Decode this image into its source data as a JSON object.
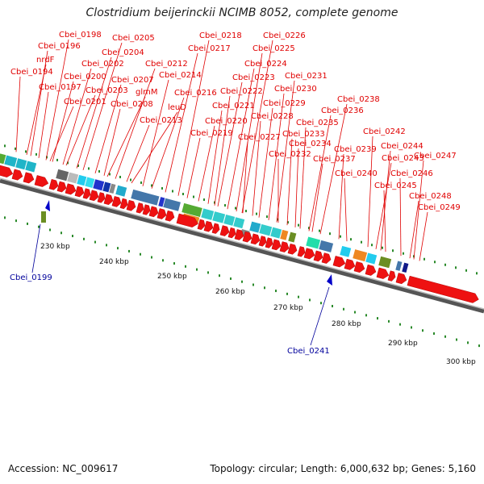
{
  "title": "Clostridium beijerinckii NCIMB 8052, complete genome",
  "footer": {
    "accession": "Accession: NC_009617",
    "summary": "Topology: circular; Length: 6,000,632 bp; Genes: 5,160"
  },
  "gene_labels_red": [
    "Cbei_0194",
    "nrdF",
    "Cbei_0196",
    "Cbei_0198",
    "Cbei_0197",
    "Cbei_0200",
    "Cbei_0201",
    "Cbei_0202",
    "Cbei_0203",
    "Cbei_0204",
    "Cbei_0205",
    "Cbei_0207",
    "Cbei_0208",
    "glmM",
    "Cbei_0212",
    "Cbei_0213",
    "leuD",
    "Cbei_0214",
    "Cbei_0216",
    "Cbei_0217",
    "Cbei_0218",
    "Cbei_0219",
    "Cbei_0220",
    "Cbei_0221",
    "Cbei_0222",
    "Cbei_0223",
    "Cbei_0224",
    "Cbei_0225",
    "Cbei_0226",
    "Cbei_0227",
    "Cbei_0228",
    "Cbei_0229",
    "Cbei_0230",
    "Cbei_0231",
    "Cbei_0232",
    "Cbei_0233",
    "Cbei_0234",
    "Cbei_0235",
    "Cbei_0236",
    "Cbei_0237",
    "Cbei_0238",
    "Cbei_0239",
    "Cbei_0240",
    "Cbei_0242",
    "Cbei_0243",
    "Cbei_0244",
    "Cbei_0245",
    "Cbei_0246",
    "Cbei_0247",
    "Cbei_0248",
    "Cbei_0249"
  ],
  "gene_labels_blue": [
    "Cbei_0199",
    "Cbei_0241"
  ],
  "ticks": [
    "230 kbp",
    "240 kbp",
    "250 kbp",
    "260 kbp",
    "270 kbp",
    "280 kbp",
    "290 kbp",
    "300 kbp"
  ]
}
